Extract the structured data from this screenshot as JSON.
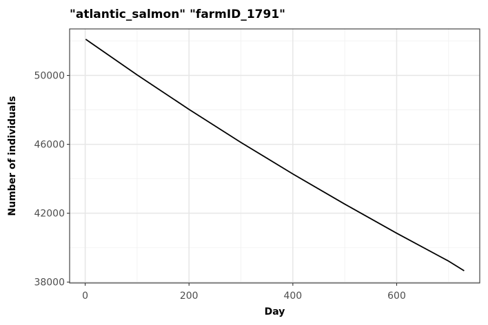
{
  "chart_data": {
    "type": "line",
    "title": "\"atlantic_salmon\" \"farmID_1791\"",
    "xlabel": "Day",
    "ylabel": "Number of individuals",
    "xlim": [
      -30,
      760
    ],
    "ylim": [
      37950,
      52700
    ],
    "x_ticks": [
      0,
      200,
      400,
      600
    ],
    "x_tick_labels": [
      "0",
      "200",
      "400",
      "600"
    ],
    "y_ticks": [
      38000,
      42000,
      46000,
      50000
    ],
    "y_tick_labels": [
      "38000",
      "42000",
      "46000",
      "50000"
    ],
    "x_minor_ticks": [
      100,
      300,
      500,
      700
    ],
    "y_minor_ticks": [
      40000,
      44000,
      48000,
      52000
    ],
    "grid": true,
    "legend": "none",
    "series": [
      {
        "color": "#000000",
        "x": [
          1,
          100,
          200,
          300,
          400,
          500,
          600,
          700,
          730
        ],
        "y": [
          52100,
          50030,
          48030,
          46110,
          44280,
          42530,
          40840,
          39220,
          38660
        ]
      }
    ]
  }
}
